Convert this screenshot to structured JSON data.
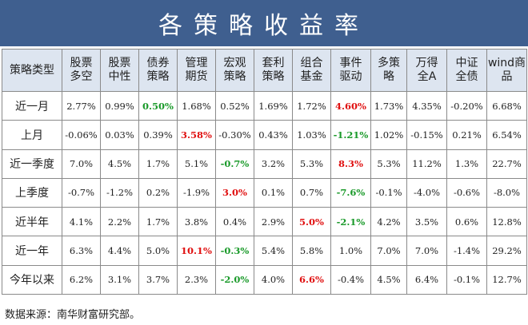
{
  "title": "各策略收益率",
  "headers": [
    "策略类型",
    "股票\n多空",
    "股票\n中性",
    "债券\n策略",
    "管理\n期货",
    "宏观\n策略",
    "套利\n策略",
    "组合\n基金",
    "事件\n驱动",
    "多策\n略",
    "万得\n全A",
    "中证\n全债",
    "wind商\n品"
  ],
  "rows": [
    {
      "label": "近一月",
      "values": [
        "2.77%",
        "0.99%",
        "0.50%",
        "1.68%",
        "0.52%",
        "1.69%",
        "1.72%",
        "4.60%",
        "1.73%",
        "4.35%",
        "-0.20%",
        "6.68%"
      ],
      "highlight": {
        "2": "green",
        "7": "red"
      }
    },
    {
      "label": "上月",
      "values": [
        "-0.06%",
        "0.03%",
        "0.39%",
        "3.58%",
        "-0.30%",
        "0.43%",
        "1.03%",
        "-1.21%",
        "1.02%",
        "-0.15%",
        "0.21%",
        "6.54%"
      ],
      "highlight": {
        "3": "red",
        "7": "green"
      }
    },
    {
      "label": "近一季度",
      "values": [
        "7.0%",
        "4.5%",
        "1.7%",
        "5.1%",
        "-0.7%",
        "3.2%",
        "5.3%",
        "8.3%",
        "5.3%",
        "11.2%",
        "1.3%",
        "22.7%"
      ],
      "highlight": {
        "4": "green",
        "7": "red"
      }
    },
    {
      "label": "上季度",
      "values": [
        "-0.7%",
        "-1.2%",
        "0.2%",
        "-1.9%",
        "3.0%",
        "0.1%",
        "0.7%",
        "-7.6%",
        "-0.1%",
        "-4.0%",
        "-0.6%",
        "-8.0%"
      ],
      "highlight": {
        "4": "red",
        "7": "green"
      }
    },
    {
      "label": "近半年",
      "values": [
        "4.1%",
        "2.2%",
        "1.7%",
        "3.8%",
        "0.4%",
        "2.9%",
        "5.0%",
        "-2.1%",
        "4.2%",
        "3.5%",
        "0.6%",
        "12.8%"
      ],
      "highlight": {
        "6": "red",
        "7": "green"
      }
    },
    {
      "label": "近一年",
      "values": [
        "6.3%",
        "4.4%",
        "5.0%",
        "10.1%",
        "-0.3%",
        "5.4%",
        "5.8%",
        "1.0%",
        "7.0%",
        "7.0%",
        "-1.4%",
        "29.2%"
      ],
      "highlight": {
        "3": "red",
        "4": "green"
      }
    },
    {
      "label": "今年以来",
      "values": [
        "6.2%",
        "3.1%",
        "3.7%",
        "2.3%",
        "-2.0%",
        "4.0%",
        "6.6%",
        "-0.4%",
        "4.5%",
        "6.4%",
        "-0.1%",
        "12.7%"
      ],
      "highlight": {
        "4": "green",
        "6": "red"
      }
    }
  ],
  "source": "数据来源：南华财富研究部。",
  "colors": {
    "title_bg": "#3f5f8f",
    "header_bg": "#dde5f0",
    "highlight_red": "#e01010",
    "highlight_green": "#1a9a2a"
  }
}
